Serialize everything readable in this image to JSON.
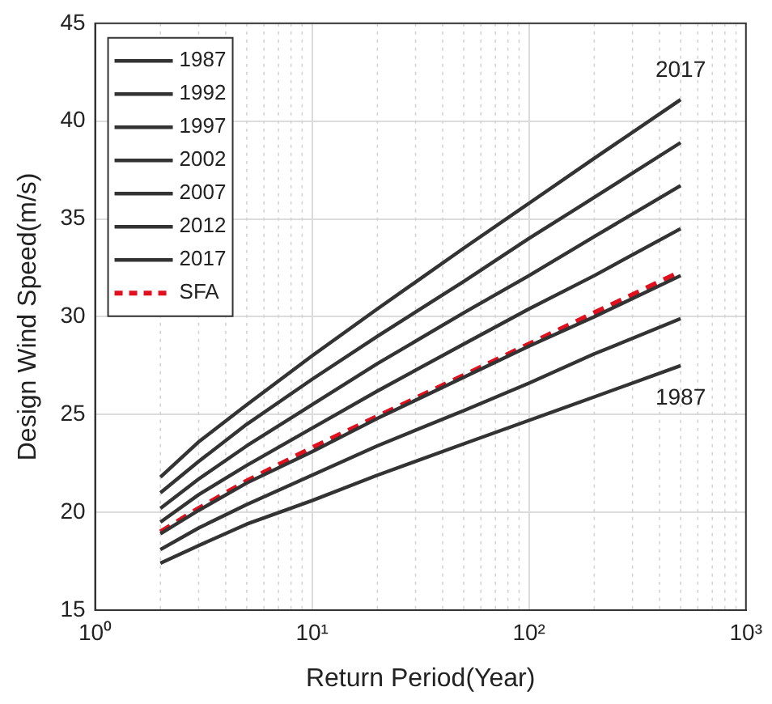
{
  "chart_data": {
    "type": "line",
    "xlabel": "Return Period(Year)",
    "ylabel": "Design Wind Speed(m/s)",
    "x": [
      2,
      3,
      5,
      10,
      20,
      50,
      100,
      200,
      500
    ],
    "series": [
      {
        "name": "1987",
        "color": "#333333",
        "values": [
          17.4,
          18.3,
          19.4,
          20.6,
          21.9,
          23.5,
          24.7,
          25.9,
          27.5
        ]
      },
      {
        "name": "1992",
        "color": "#333333",
        "values": [
          18.1,
          19.2,
          20.4,
          21.9,
          23.4,
          25.2,
          26.6,
          28.1,
          29.9
        ]
      },
      {
        "name": "1997",
        "color": "#333333",
        "values": [
          18.9,
          20.1,
          21.5,
          23.1,
          24.8,
          26.9,
          28.5,
          30.0,
          32.1
        ]
      },
      {
        "name": "2002",
        "color": "#333333",
        "values": [
          19.5,
          20.9,
          22.4,
          24.3,
          26.2,
          28.6,
          30.4,
          32.1,
          34.5
        ]
      },
      {
        "name": "2007",
        "color": "#333333",
        "values": [
          20.2,
          21.7,
          23.4,
          25.5,
          27.6,
          30.2,
          32.1,
          34.1,
          36.7
        ]
      },
      {
        "name": "2012",
        "color": "#333333",
        "values": [
          21.0,
          22.6,
          24.5,
          26.8,
          29.0,
          31.8,
          34.0,
          36.1,
          38.9
        ]
      },
      {
        "name": "2017",
        "color": "#333333",
        "values": [
          21.8,
          23.6,
          25.5,
          28.0,
          30.4,
          33.5,
          35.8,
          38.1,
          41.1
        ]
      },
      {
        "name": "SFA",
        "color": "#e0101e",
        "line_style": "dashed",
        "values": [
          19.0,
          20.2,
          21.6,
          23.3,
          24.9,
          27.0,
          28.6,
          30.2,
          32.3
        ]
      }
    ],
    "annotations": [
      "2017",
      "1987"
    ],
    "log": "x",
    "xlim": [
      1,
      1000
    ],
    "xticks": [
      {
        "value": 1,
        "label": "10⁰"
      },
      {
        "value": 10,
        "label": "10¹"
      },
      {
        "value": 100,
        "label": "10²"
      },
      {
        "value": 1000,
        "label": "10³"
      }
    ],
    "ylim": [
      15,
      45
    ],
    "yticks": [
      15,
      20,
      25,
      30,
      35,
      40,
      45
    ],
    "grid": true,
    "legend": "top left",
    "line_style": "solid",
    "marker": "none"
  }
}
